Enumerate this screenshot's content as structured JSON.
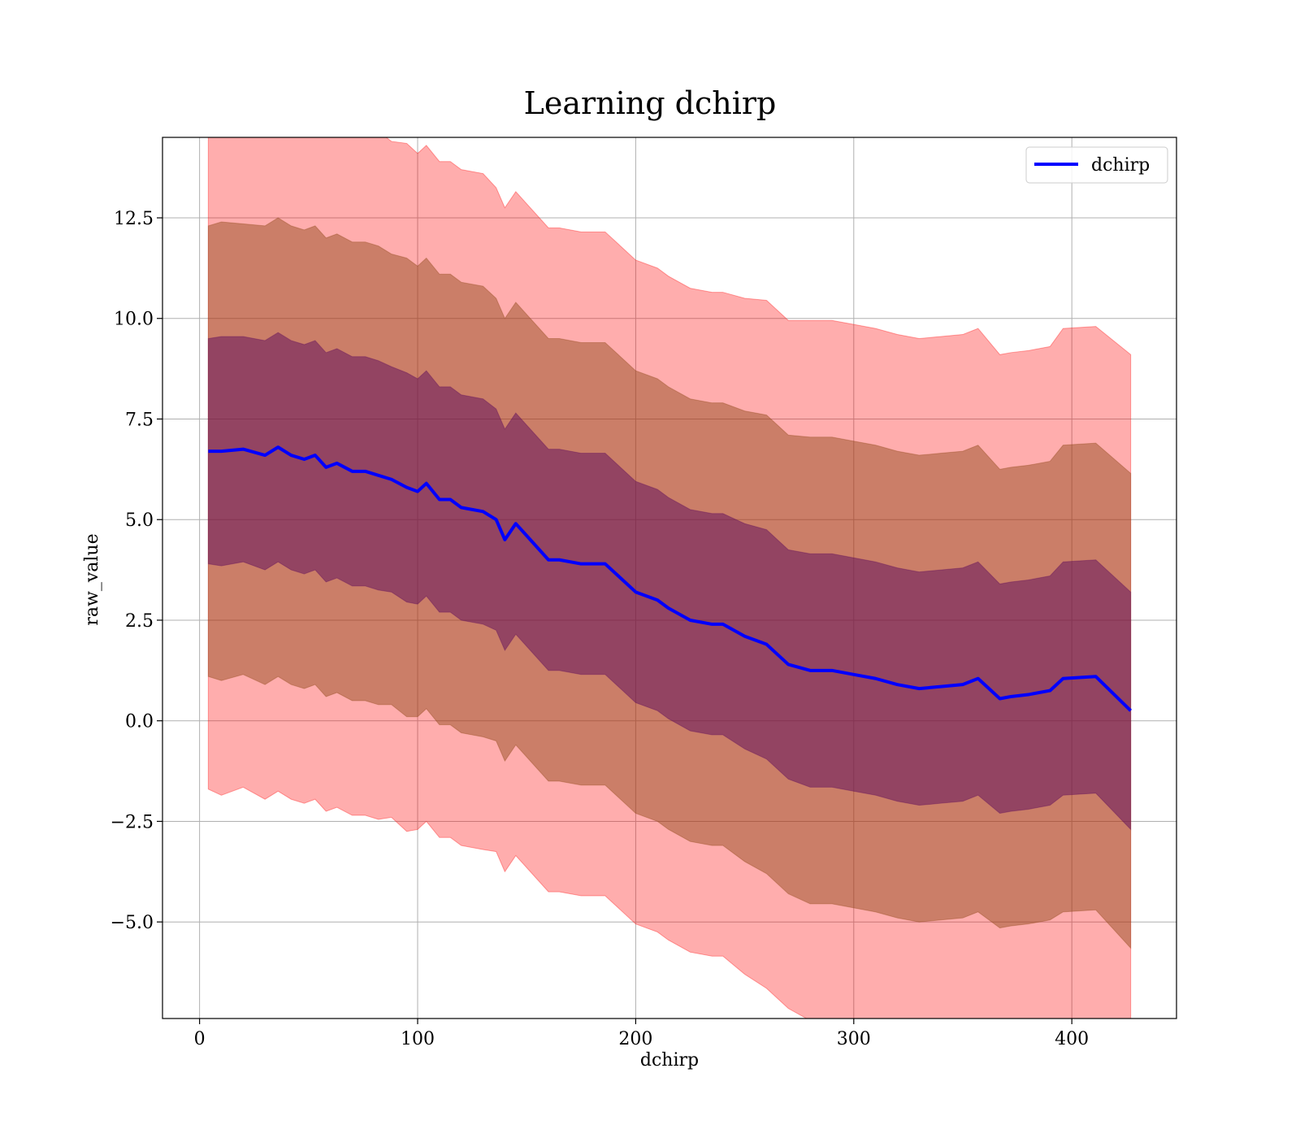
{
  "chart_data": {
    "type": "line",
    "title": "Learning dchirp",
    "xlabel": "dchirp",
    "ylabel": "raw_value",
    "xlim": [
      -17,
      448
    ],
    "ylim": [
      -7.4,
      14.5
    ],
    "xticks": [
      0,
      100,
      200,
      300,
      400
    ],
    "xtick_labels": [
      "0",
      "100",
      "200",
      "300",
      "400"
    ],
    "yticks": [
      -5.0,
      -2.5,
      0.0,
      2.5,
      5.0,
      7.5,
      10.0,
      12.5
    ],
    "ytick_labels": [
      "−5.0",
      "−2.5",
      "0.0",
      "2.5",
      "5.0",
      "7.5",
      "10.0",
      "12.5"
    ],
    "grid": true,
    "legend": {
      "position": "top-right",
      "entries": [
        "dchirp"
      ]
    },
    "colors": {
      "line": "#0000ff",
      "band_outer": "#ff0000",
      "band_middle": "#8b4513",
      "band_inner": "#5c0a5c"
    },
    "series": [
      {
        "name": "dchirp",
        "x": [
          4,
          10,
          20,
          30,
          36,
          42,
          48,
          53,
          58,
          63,
          70,
          76,
          82,
          88,
          95,
          100,
          104,
          110,
          115,
          120,
          130,
          136,
          140,
          145,
          150,
          155,
          160,
          165,
          175,
          180,
          186,
          192,
          200,
          210,
          215,
          225,
          235,
          240,
          250,
          260,
          270,
          280,
          290,
          300,
          310,
          320,
          330,
          340,
          350,
          357,
          367,
          372,
          380,
          390,
          396,
          411,
          427
        ],
        "y": [
          6.7,
          6.7,
          6.75,
          6.6,
          6.8,
          6.6,
          6.5,
          6.6,
          6.3,
          6.4,
          6.2,
          6.2,
          6.1,
          6.0,
          5.8,
          5.7,
          5.9,
          5.5,
          5.5,
          5.3,
          5.2,
          5.0,
          4.5,
          4.9,
          4.6,
          4.3,
          4.0,
          4.0,
          3.9,
          3.9,
          3.9,
          3.6,
          3.2,
          3.0,
          2.8,
          2.5,
          2.4,
          2.4,
          2.1,
          1.9,
          1.4,
          1.25,
          1.25,
          1.15,
          1.05,
          0.9,
          0.8,
          0.85,
          0.9,
          1.05,
          0.55,
          0.6,
          0.65,
          0.75,
          1.05,
          1.1,
          0.25
        ],
        "bands_std_multiples": [
          1,
          2,
          3
        ],
        "std": [
          2.8,
          2.85,
          2.8,
          2.85,
          2.85,
          2.85,
          2.85,
          2.85,
          2.85,
          2.85,
          2.85,
          2.85,
          2.85,
          2.8,
          2.85,
          2.8,
          2.8,
          2.8,
          2.8,
          2.8,
          2.8,
          2.75,
          2.75,
          2.75,
          2.75,
          2.75,
          2.75,
          2.75,
          2.75,
          2.75,
          2.75,
          2.75,
          2.75,
          2.75,
          2.75,
          2.75,
          2.75,
          2.75,
          2.8,
          2.85,
          2.85,
          2.9,
          2.9,
          2.9,
          2.9,
          2.9,
          2.9,
          2.9,
          2.9,
          2.9,
          2.85,
          2.85,
          2.85,
          2.85,
          2.9,
          2.9,
          2.95
        ]
      }
    ]
  }
}
